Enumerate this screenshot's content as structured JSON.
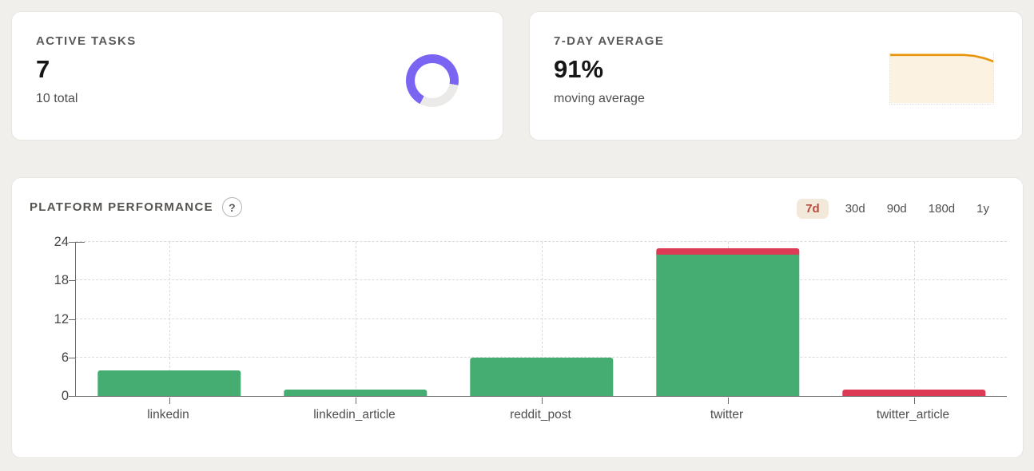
{
  "cards": {
    "active_tasks": {
      "label": "ACTIVE TASKS",
      "value": "7",
      "subtitle": "10 total",
      "donut": {
        "fraction": 0.7,
        "color": "#7A65F2",
        "track": "#EBEAE8",
        "gap_start_deg": 100
      }
    },
    "seven_day_avg": {
      "label": "7-DAY AVERAGE",
      "value": "91%",
      "subtitle": "moving average"
    }
  },
  "chart_card": {
    "title": "PLATFORM PERFORMANCE",
    "help_label": "?",
    "ranges": [
      {
        "label": "7d",
        "selected": true
      },
      {
        "label": "30d",
        "selected": false
      },
      {
        "label": "90d",
        "selected": false
      },
      {
        "label": "180d",
        "selected": false
      },
      {
        "label": "1y",
        "selected": false
      }
    ],
    "selected_range_colors": {
      "background": "#F2E9DA",
      "text": "#BB4A3C"
    }
  },
  "chart_data": [
    {
      "id": "platform-performance-bars",
      "type": "bar",
      "stacked": true,
      "title": "PLATFORM PERFORMANCE",
      "categories": [
        "linkedin",
        "linkedin_article",
        "reddit_post",
        "twitter",
        "twitter_article"
      ],
      "series": [
        {
          "name": "green",
          "color": "#45AC72",
          "values": [
            4,
            1,
            6,
            22,
            0
          ]
        },
        {
          "name": "red",
          "color": "#DC3A55",
          "values": [
            0,
            0,
            0,
            1,
            1
          ]
        }
      ],
      "yticks": [
        0,
        6,
        12,
        18,
        24
      ],
      "ylim": [
        0,
        24
      ],
      "grid": true,
      "legend": false,
      "xlabel": "",
      "ylabel": ""
    },
    {
      "id": "seven-day-average-sparkline",
      "type": "area",
      "line_color": "#E8940A",
      "fill_color": "#FBF2E1",
      "points_x": [
        0,
        0.55,
        0.72,
        0.82,
        0.92,
        1
      ],
      "points_y_frac_from_top": [
        0.03,
        0.03,
        0.03,
        0.05,
        0.1,
        0.16
      ]
    },
    {
      "id": "active-tasks-donut",
      "type": "pie",
      "values": [
        7,
        3
      ],
      "colors": [
        "#7A65F2",
        "#EBEAE8"
      ]
    }
  ]
}
